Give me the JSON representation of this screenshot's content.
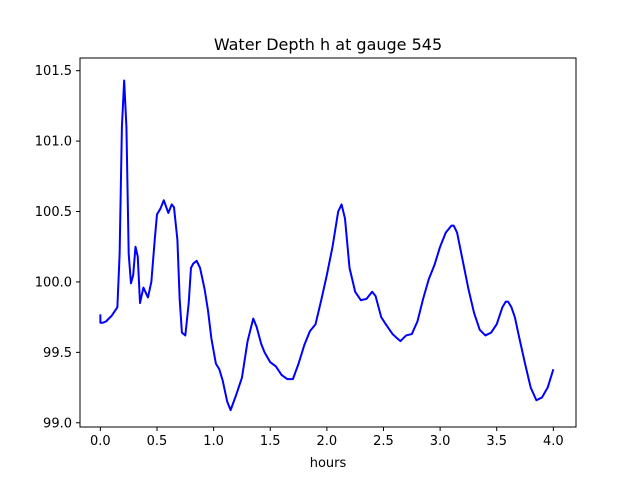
{
  "chart_data": {
    "type": "line",
    "title": "Water Depth h at gauge 545",
    "xlabel": "hours",
    "ylabel": "",
    "xlim": [
      -0.18,
      4.2
    ],
    "ylim": [
      98.97,
      101.59
    ],
    "x_ticks": [
      0.0,
      0.5,
      1.0,
      1.5,
      2.0,
      2.5,
      3.0,
      3.5,
      4.0
    ],
    "x_tick_labels": [
      "0.0",
      "0.5",
      "1.0",
      "1.5",
      "2.0",
      "2.5",
      "3.0",
      "3.5",
      "4.0"
    ],
    "y_ticks": [
      99.0,
      99.5,
      100.0,
      100.5,
      101.0,
      101.5
    ],
    "y_tick_labels": [
      "99.0",
      "99.5",
      "100.0",
      "100.5",
      "101.0",
      "101.5"
    ],
    "grid": false,
    "series": [
      {
        "color": "#0000ff",
        "x": [
          0.0,
          0.0,
          0.02,
          0.05,
          0.1,
          0.15,
          0.17,
          0.19,
          0.21,
          0.23,
          0.25,
          0.27,
          0.29,
          0.31,
          0.33,
          0.35,
          0.38,
          0.42,
          0.45,
          0.48,
          0.5,
          0.53,
          0.56,
          0.6,
          0.63,
          0.65,
          0.68,
          0.7,
          0.72,
          0.75,
          0.78,
          0.8,
          0.82,
          0.85,
          0.88,
          0.92,
          0.95,
          0.98,
          1.02,
          1.05,
          1.08,
          1.12,
          1.15,
          1.2,
          1.25,
          1.3,
          1.35,
          1.38,
          1.42,
          1.45,
          1.5,
          1.55,
          1.6,
          1.65,
          1.7,
          1.75,
          1.8,
          1.85,
          1.9,
          1.95,
          2.0,
          2.05,
          2.1,
          2.13,
          2.16,
          2.2,
          2.25,
          2.3,
          2.35,
          2.4,
          2.43,
          2.48,
          2.52,
          2.58,
          2.62,
          2.65,
          2.7,
          2.75,
          2.8,
          2.85,
          2.9,
          2.95,
          3.0,
          3.05,
          3.1,
          3.12,
          3.15,
          3.2,
          3.25,
          3.3,
          3.35,
          3.4,
          3.45,
          3.5,
          3.55,
          3.58,
          3.6,
          3.63,
          3.66,
          3.7,
          3.75,
          3.8,
          3.85,
          3.9,
          3.95,
          4.0
        ],
        "y": [
          99.77,
          99.71,
          99.71,
          99.72,
          99.76,
          99.82,
          100.2,
          101.1,
          101.43,
          101.1,
          100.2,
          99.99,
          100.05,
          100.25,
          100.18,
          99.85,
          99.96,
          99.89,
          100.0,
          100.3,
          100.48,
          100.52,
          100.58,
          100.49,
          100.55,
          100.53,
          100.3,
          99.88,
          99.64,
          99.62,
          99.85,
          100.1,
          100.13,
          100.15,
          100.1,
          99.95,
          99.8,
          99.6,
          99.42,
          99.38,
          99.3,
          99.15,
          99.09,
          99.2,
          99.32,
          99.58,
          99.74,
          99.68,
          99.56,
          99.5,
          99.43,
          99.4,
          99.34,
          99.31,
          99.31,
          99.42,
          99.55,
          99.65,
          99.7,
          99.87,
          100.05,
          100.25,
          100.5,
          100.55,
          100.45,
          100.1,
          99.93,
          99.87,
          99.88,
          99.93,
          99.9,
          99.75,
          99.7,
          99.63,
          99.6,
          99.58,
          99.62,
          99.63,
          99.72,
          99.88,
          100.02,
          100.12,
          100.25,
          100.35,
          100.4,
          100.4,
          100.35,
          100.15,
          99.95,
          99.78,
          99.66,
          99.62,
          99.64,
          99.7,
          99.82,
          99.86,
          99.86,
          99.82,
          99.75,
          99.6,
          99.42,
          99.25,
          99.16,
          99.18,
          99.25,
          99.38
        ]
      }
    ]
  }
}
